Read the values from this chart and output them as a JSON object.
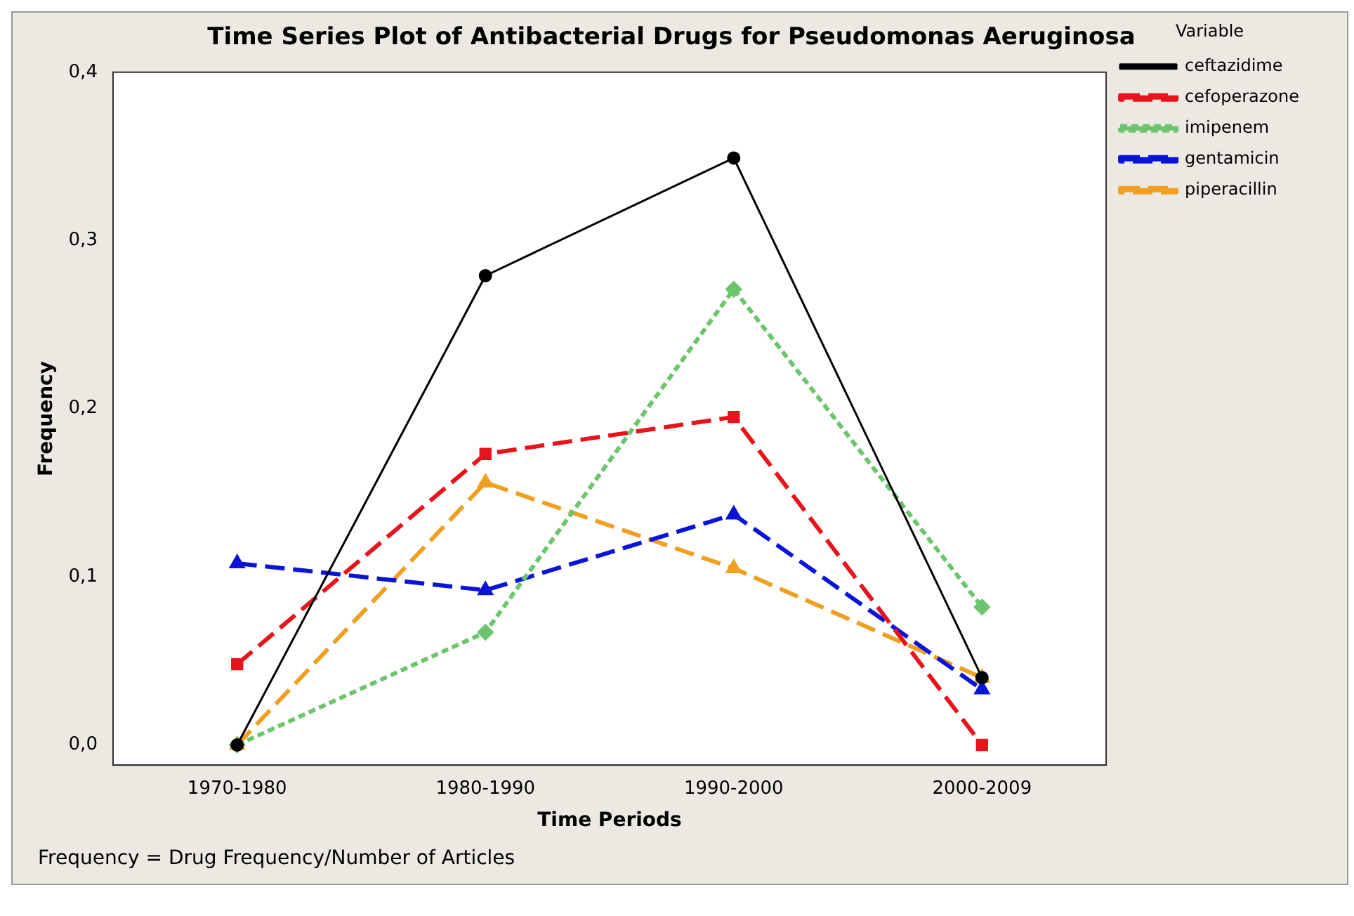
{
  "chart_data": {
    "type": "line",
    "title": "Time Series Plot of Antibacterial Drugs for Pseudomonas Aeruginosa",
    "xlabel": "Time Periods",
    "ylabel": "Frequency",
    "legend_title": "Variable",
    "legend": "right",
    "grid": false,
    "categories": [
      "1970-1980",
      "1980-1990",
      "1990-2000",
      "2000-2009"
    ],
    "ylim": [
      -0.012,
      0.4
    ],
    "yticks": [
      {
        "value": 0,
        "label": "0,0"
      },
      {
        "value": 0.1,
        "label": "0,1"
      },
      {
        "value": 0.2,
        "label": "0,2"
      },
      {
        "value": 0.3,
        "label": "0,3"
      },
      {
        "value": 0.4,
        "label": "0,4"
      }
    ],
    "series": [
      {
        "name": "ceftazidime",
        "color": "#000000",
        "values": [
          0,
          0.279,
          0.349,
          0.04
        ],
        "marker": "circle",
        "line_style": "solid"
      },
      {
        "name": "cefoperazone",
        "color": "#e8141c",
        "values": [
          0.048,
          0.173,
          0.195,
          0
        ],
        "marker": "square",
        "line_style": "dashed"
      },
      {
        "name": "imipenem",
        "color": "#6cc56c",
        "values": [
          0,
          0.067,
          0.271,
          0.082
        ],
        "marker": "diamond",
        "line_style": "dotted"
      },
      {
        "name": "gentamicin",
        "color": "#0a14d8",
        "values": [
          0.108,
          0.092,
          0.137,
          0.033
        ],
        "marker": "triangle",
        "line_style": "dashed"
      },
      {
        "name": "piperacillin",
        "color": "#f0a020",
        "values": [
          0,
          0.156,
          0.105,
          0.04
        ],
        "marker": "triangle",
        "line_style": "dashed"
      }
    ],
    "annotations": [
      "Frequency = Drug Frequency/Number of Articles"
    ]
  }
}
